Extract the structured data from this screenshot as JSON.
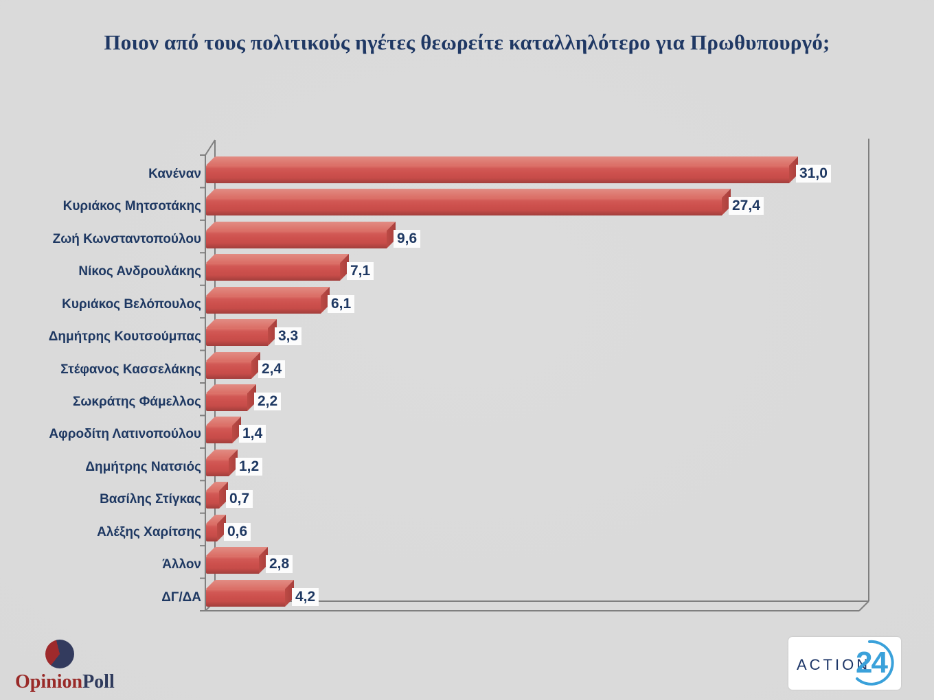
{
  "title": "Ποιον από τους πολιτικούς ηγέτες θεωρείτε καταλληλότερο για Πρωθυπουργό;",
  "chart_data": {
    "type": "bar",
    "orientation": "horizontal",
    "style": "3d",
    "title": "Ποιον από τους πολιτικούς ηγέτες θεωρείτε καταλληλότερο για Πρωθυπουργό;",
    "categories": [
      "Κανέναν",
      "Κυριάκος Μητσοτάκης",
      "Ζωή Κωνσταντοπούλου",
      "Νίκος Ανδρουλάκης",
      "Κυριάκος Βελόπουλος",
      "Δημήτρης Κουτσούμπας",
      "Στέφανος Κασσελάκης",
      "Σωκράτης Φάμελλος",
      "Αφροδίτη Λατινοπούλου",
      "Δημήτρης Νατσιός",
      "Βασίλης Στίγκας",
      "Αλέξης Χαρίτσης",
      "Άλλον",
      "ΔΓ/ΔΑ"
    ],
    "values": [
      31.0,
      27.4,
      9.6,
      7.1,
      6.1,
      3.3,
      2.4,
      2.2,
      1.4,
      1.2,
      0.7,
      0.6,
      2.8,
      4.2
    ],
    "value_labels": [
      "31,0",
      "27,4",
      "9,6",
      "7,1",
      "6,1",
      "3,3",
      "2,4",
      "2,2",
      "1,4",
      "1,2",
      "0,7",
      "0,6",
      "2,8",
      "4,2"
    ],
    "xlim": [
      0,
      35
    ],
    "grid": false,
    "legend": false,
    "bar_color": "#cd504d",
    "text_color": "#1e3862",
    "frame_color": "#7f7f7f"
  },
  "footer": {
    "opinionpoll": {
      "word1": "Opinion",
      "word2": "Poll"
    },
    "action24": {
      "word": "ACTION",
      "number": "24"
    }
  }
}
